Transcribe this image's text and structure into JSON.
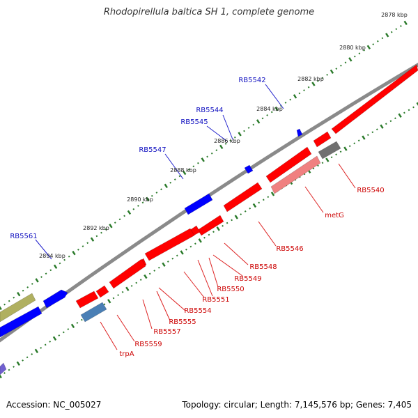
{
  "title": "Rhodopirellula baltica SH 1, complete genome",
  "footer": {
    "accession_label": "Accession:",
    "accession": "NC_005027",
    "topology": "Topology: circular",
    "length": "Length: 7,145,576 bp",
    "genes": "Genes: 7,405"
  },
  "colors": {
    "forward_gene": "#0000ff",
    "reverse_gene": "#ff0000",
    "forward_label": "#1010c0",
    "reverse_label": "#cc0000",
    "rrna_gene": "#b0b060",
    "pseudo_gene": "#f08080",
    "steelblue_gene": "#4a7fb5",
    "grey_gene": "#707070",
    "backbone": "#8a8a8a",
    "tick": "#2a7a2a"
  },
  "tick_labels": [
    "2878 kbp",
    "2880 kbp",
    "2882 kbp",
    "2884 kbp",
    "2886 kbp",
    "2888 kbp",
    "2890 kbp",
    "2892 kbp",
    "2894 kbp"
  ],
  "forward_gene_labels": [
    "RB5542",
    "RB5544",
    "RB5545",
    "RB5547",
    "RB5561"
  ],
  "reverse_gene_labels": [
    "RB5540",
    "metG",
    "RB5546",
    "RB5548",
    "RB5549",
    "RB5550",
    "RB5551",
    "RB5554",
    "RB5555",
    "RB5557",
    "RB5559",
    "trpA"
  ]
}
